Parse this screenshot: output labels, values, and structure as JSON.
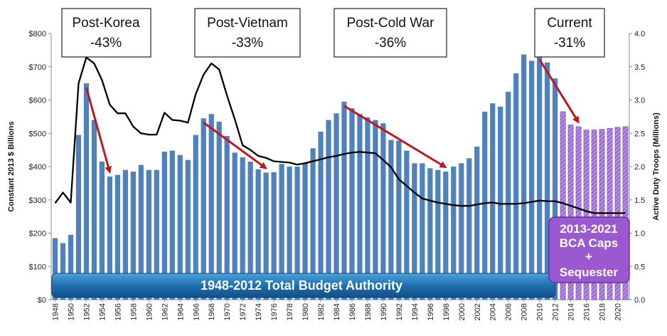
{
  "chart_data": {
    "type": "bar",
    "ylabel": "Constant 2013 $ Billions",
    "y2label": "Active Duty Troops (Millions)",
    "ylim": [
      0,
      800
    ],
    "y2lim": [
      0,
      4.0
    ],
    "y_ticks": [
      "$0",
      "$100",
      "$200",
      "$300",
      "$400",
      "$500",
      "$600",
      "$700",
      "$800"
    ],
    "y2_ticks": [
      "0.0",
      "0.5",
      "1.0",
      "1.5",
      "2.0",
      "2.5",
      "3.0",
      "3.5",
      "4.0"
    ],
    "x_tick_labels": [
      "1948",
      "1950",
      "1952",
      "1954",
      "1956",
      "1958",
      "1960",
      "1962",
      "1964",
      "1966",
      "1968",
      "1970",
      "1972",
      "1974",
      "1976",
      "1978",
      "1980",
      "1982",
      "1984",
      "1986",
      "1988",
      "1990",
      "1992",
      "1994",
      "1996",
      "1998",
      "2000",
      "2002",
      "2004",
      "2006",
      "2008",
      "2010",
      "2012",
      "2014",
      "2016",
      "2018",
      "2020"
    ],
    "years": [
      1948,
      1949,
      1950,
      1951,
      1952,
      1953,
      1954,
      1955,
      1956,
      1957,
      1958,
      1959,
      1960,
      1961,
      1962,
      1963,
      1964,
      1965,
      1966,
      1967,
      1968,
      1969,
      1970,
      1971,
      1972,
      1973,
      1974,
      1975,
      1976,
      1977,
      1978,
      1979,
      1980,
      1981,
      1982,
      1983,
      1984,
      1985,
      1986,
      1987,
      1988,
      1989,
      1990,
      1991,
      1992,
      1993,
      1994,
      1995,
      1996,
      1997,
      1998,
      1999,
      2000,
      2001,
      2002,
      2003,
      2004,
      2005,
      2006,
      2007,
      2008,
      2009,
      2010,
      2011,
      2012,
      2013,
      2014,
      2015,
      2016,
      2017,
      2018,
      2019,
      2020,
      2021
    ],
    "budget_authority": [
      185,
      170,
      195,
      495,
      650,
      540,
      415,
      370,
      375,
      390,
      385,
      405,
      390,
      390,
      445,
      448,
      435,
      420,
      495,
      545,
      558,
      535,
      492,
      442,
      428,
      415,
      392,
      382,
      383,
      408,
      400,
      400,
      410,
      455,
      505,
      540,
      560,
      595,
      575,
      558,
      548,
      540,
      530,
      480,
      478,
      448,
      410,
      410,
      395,
      390,
      385,
      400,
      410,
      425,
      460,
      565,
      590,
      580,
      625,
      680,
      737,
      718,
      735,
      713,
      665,
      565,
      525,
      520,
      510,
      510,
      512,
      515,
      518,
      520
    ],
    "active_duty_troops": [
      1.45,
      1.61,
      1.46,
      3.25,
      3.64,
      3.55,
      3.3,
      2.93,
      2.8,
      2.8,
      2.6,
      2.5,
      2.48,
      2.48,
      2.81,
      2.7,
      2.69,
      2.66,
      3.09,
      3.38,
      3.55,
      3.46,
      3.07,
      2.71,
      2.32,
      2.25,
      2.16,
      2.13,
      2.08,
      2.07,
      2.06,
      2.03,
      2.05,
      2.08,
      2.11,
      2.14,
      2.16,
      2.19,
      2.21,
      2.22,
      2.21,
      2.2,
      2.1,
      1.99,
      1.81,
      1.71,
      1.61,
      1.52,
      1.49,
      1.46,
      1.44,
      1.42,
      1.41,
      1.41,
      1.43,
      1.45,
      1.46,
      1.44,
      1.44,
      1.44,
      1.45,
      1.47,
      1.49,
      1.48,
      1.48,
      1.45,
      1.41,
      1.37,
      1.33,
      1.3,
      1.3,
      1.3,
      1.3,
      1.3
    ],
    "projection_start_year": 2013,
    "bar_color": "#4f81bd",
    "projection_color": "#9966cc",
    "line_color": "#000000",
    "arrow_color": "#c0161c",
    "eras": [
      {
        "title": "Post-Korea",
        "change": "-43%",
        "from_year": 1952,
        "to_year": 1955
      },
      {
        "title": "Post-Vietnam",
        "change": "-33%",
        "from_year": 1967,
        "to_year": 1975
      },
      {
        "title": "Post-Cold War",
        "change": "-36%",
        "from_year": 1985,
        "to_year": 1998
      },
      {
        "title": "Current",
        "change": "-31%",
        "from_year": 2010,
        "to_year": 2015
      }
    ],
    "banner": "1948-2012 Total Budget Authority",
    "bca_box": [
      "2013-2021",
      "BCA Caps",
      "+",
      "Sequester"
    ]
  }
}
